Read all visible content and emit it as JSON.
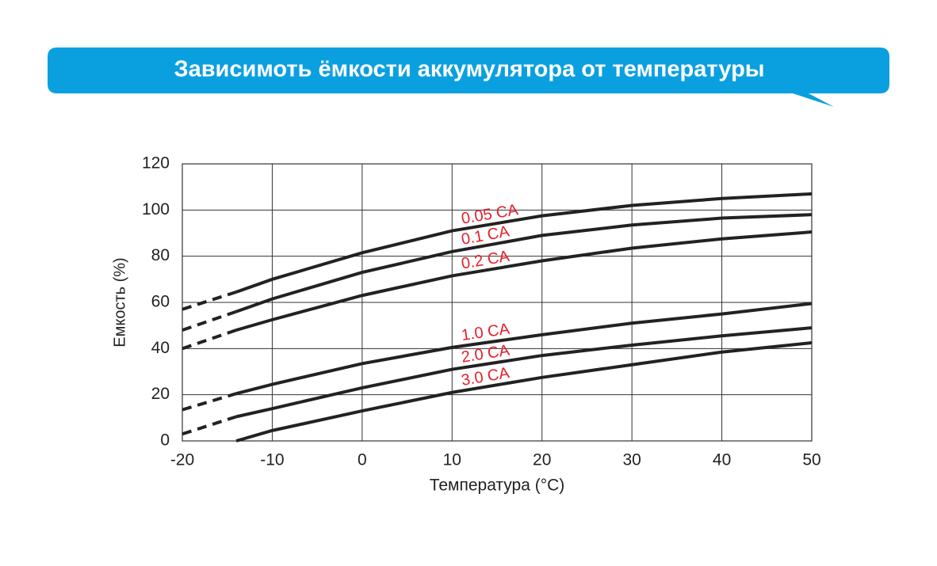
{
  "chart_data": {
    "type": "line",
    "title": "Зависимоть ёмкости аккумулятора от температуры",
    "x_label": "Температура (°C)",
    "y_label": "Емкость (%)",
    "x": [
      -20,
      -14,
      -10,
      0,
      10,
      20,
      30,
      40,
      50
    ],
    "xlim": [
      -20,
      50
    ],
    "xticks": [
      -20,
      -10,
      0,
      10,
      20,
      30,
      40,
      50
    ],
    "ylim": [
      0,
      120
    ],
    "yticks": [
      0,
      20,
      40,
      60,
      80,
      100,
      120
    ],
    "grid": true,
    "line_color": "#222222",
    "label_color": "#e3202a",
    "dashed_x_max": -14,
    "series": [
      {
        "name": "0.05 CA",
        "values": [
          57,
          64.5,
          70,
          81.5,
          91,
          97.5,
          102,
          105,
          107
        ]
      },
      {
        "name": "0.1 CA",
        "values": [
          48,
          56,
          61.5,
          73,
          82,
          89,
          93.5,
          96.5,
          98
        ]
      },
      {
        "name": "0.2 CA",
        "values": [
          40,
          48,
          52.5,
          63,
          71.5,
          78,
          83.5,
          87.5,
          90.5
        ]
      },
      {
        "name": "1.0 CA",
        "values": [
          13.5,
          20.5,
          24.5,
          33.5,
          40.5,
          46,
          51,
          55,
          59.5
        ]
      },
      {
        "name": "2.0 CA",
        "values": [
          3,
          10.5,
          14,
          23,
          31,
          37,
          41.5,
          45.5,
          49
        ]
      },
      {
        "name": "3.0 CA",
        "values": [
          null,
          0,
          4.5,
          13,
          21,
          27.5,
          33,
          38.5,
          42.5
        ]
      }
    ]
  }
}
